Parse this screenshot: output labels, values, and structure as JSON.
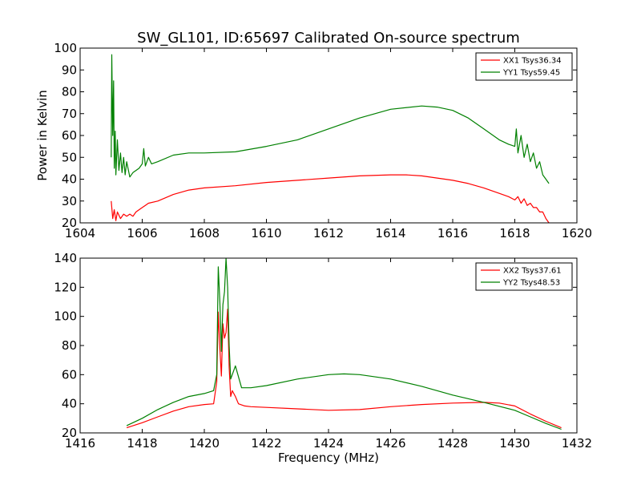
{
  "figure": {
    "title": "SW_GL101, ID:65697 Calibrated On-source spectrum",
    "ylabel": "Power in Kelvin",
    "xlabel": "Frequency (MHz)"
  },
  "chart_data": [
    {
      "type": "line",
      "xlim": [
        1604,
        1620
      ],
      "ylim": [
        20,
        100
      ],
      "xticks": [
        1604,
        1606,
        1608,
        1610,
        1612,
        1614,
        1616,
        1618,
        1620
      ],
      "yticks": [
        20,
        30,
        40,
        50,
        60,
        70,
        80,
        90,
        100
      ],
      "legend_position": "top-right",
      "series": [
        {
          "name": "XX1 Tsys36.34",
          "color": "#ff0000",
          "x": [
            1605.0,
            1605.05,
            1605.1,
            1605.15,
            1605.2,
            1605.3,
            1605.4,
            1605.5,
            1605.6,
            1605.7,
            1605.8,
            1605.9,
            1606.0,
            1606.1,
            1606.2,
            1606.5,
            1607.0,
            1607.5,
            1608.0,
            1609.0,
            1610.0,
            1611.0,
            1612.0,
            1613.0,
            1614.0,
            1614.5,
            1615.0,
            1615.5,
            1616.0,
            1616.5,
            1617.0,
            1617.5,
            1617.8,
            1618.0,
            1618.1,
            1618.2,
            1618.3,
            1618.4,
            1618.5,
            1618.6,
            1618.7,
            1618.8,
            1618.9,
            1619.0,
            1619.1
          ],
          "y": [
            30,
            22,
            26,
            21,
            25,
            22,
            24,
            23,
            24,
            23,
            25,
            26,
            27,
            28,
            29,
            30,
            33,
            35,
            36,
            37,
            38.5,
            39.5,
            40.5,
            41.5,
            42,
            42,
            41.5,
            40.5,
            39.5,
            38,
            36,
            33.5,
            32,
            30.5,
            32,
            29,
            31,
            28,
            29,
            27,
            27,
            25,
            25,
            22,
            20
          ]
        },
        {
          "name": "YY1 Tsys59.45",
          "color": "#008000",
          "x": [
            1605.0,
            1605.02,
            1605.05,
            1605.08,
            1605.1,
            1605.13,
            1605.15,
            1605.2,
            1605.25,
            1605.3,
            1605.35,
            1605.4,
            1605.45,
            1605.5,
            1605.6,
            1605.7,
            1605.8,
            1605.9,
            1606.0,
            1606.05,
            1606.1,
            1606.2,
            1606.3,
            1606.5,
            1607.0,
            1607.5,
            1608.0,
            1609.0,
            1610.0,
            1611.0,
            1612.0,
            1613.0,
            1614.0,
            1615.0,
            1615.5,
            1616.0,
            1616.5,
            1617.0,
            1617.5,
            1617.8,
            1618.0,
            1618.05,
            1618.1,
            1618.2,
            1618.3,
            1618.4,
            1618.5,
            1618.6,
            1618.7,
            1618.8,
            1618.9,
            1619.0,
            1619.1
          ],
          "y": [
            50,
            97,
            60,
            85,
            45,
            62,
            42,
            58,
            44,
            52,
            43,
            50,
            42,
            48,
            41,
            43,
            44,
            45,
            47,
            54,
            46,
            50,
            47,
            48,
            51,
            52,
            52,
            52.5,
            55,
            58,
            63,
            68,
            72,
            73.5,
            73,
            71.5,
            68,
            63,
            58,
            56,
            55,
            63,
            52,
            60,
            50,
            56,
            48,
            52,
            45,
            48,
            42,
            40,
            38
          ]
        }
      ]
    },
    {
      "type": "line",
      "xlim": [
        1416,
        1432
      ],
      "ylim": [
        20,
        140
      ],
      "xticks": [
        1416,
        1418,
        1420,
        1422,
        1424,
        1426,
        1428,
        1430,
        1432
      ],
      "yticks": [
        20,
        40,
        60,
        80,
        100,
        120,
        140
      ],
      "legend_position": "top-right",
      "series": [
        {
          "name": "XX2 Tsys37.61",
          "color": "#ff0000",
          "x": [
            1417.5,
            1418.0,
            1418.5,
            1419.0,
            1419.5,
            1420.0,
            1420.3,
            1420.4,
            1420.45,
            1420.5,
            1420.55,
            1420.6,
            1420.65,
            1420.7,
            1420.75,
            1420.8,
            1420.85,
            1420.9,
            1421.0,
            1421.1,
            1421.3,
            1421.5,
            1422.0,
            1423.0,
            1424.0,
            1425.0,
            1426.0,
            1427.0,
            1428.0,
            1429.0,
            1429.5,
            1430.0,
            1430.5,
            1431.0,
            1431.5
          ],
          "y": [
            23.5,
            27,
            31,
            35,
            38,
            39.5,
            40,
            55,
            103,
            78,
            59,
            95,
            85,
            89,
            105,
            65,
            45,
            49,
            45,
            40,
            38.5,
            38,
            37.5,
            36.5,
            35.5,
            36,
            38,
            39.5,
            40.5,
            41,
            40.5,
            38.5,
            33,
            28,
            23.5
          ]
        },
        {
          "name": "YY2 Tsys48.53",
          "color": "#008000",
          "x": [
            1417.5,
            1418.0,
            1418.5,
            1419.0,
            1419.5,
            1420.0,
            1420.3,
            1420.4,
            1420.45,
            1420.5,
            1420.55,
            1420.6,
            1420.65,
            1420.7,
            1420.75,
            1420.8,
            1420.85,
            1420.9,
            1421.0,
            1421.2,
            1421.5,
            1422.0,
            1423.0,
            1424.0,
            1424.5,
            1425.0,
            1426.0,
            1427.0,
            1428.0,
            1429.0,
            1430.0,
            1430.5,
            1431.0,
            1431.5
          ],
          "y": [
            25,
            30,
            36,
            41,
            45,
            47,
            49,
            60,
            134,
            110,
            76,
            108,
            117,
            140,
            120,
            80,
            57,
            60,
            66,
            51,
            51,
            52.5,
            57,
            60,
            60.5,
            60,
            57,
            52,
            46,
            41,
            35.5,
            31,
            26.5,
            22.5
          ]
        }
      ]
    }
  ]
}
